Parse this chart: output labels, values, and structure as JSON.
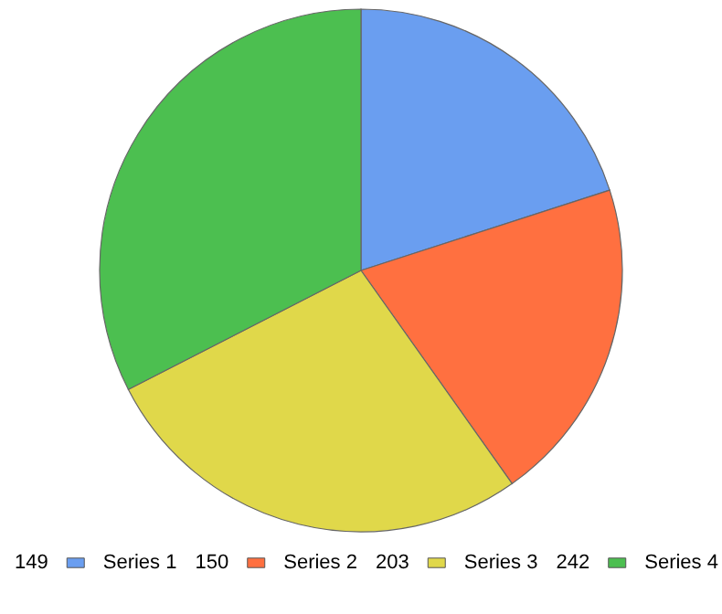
{
  "chart_data": {
    "type": "pie",
    "categories": [
      "Series 1",
      "Series 2",
      "Series 3",
      "Series 4"
    ],
    "values": [
      149,
      150,
      203,
      242
    ],
    "colors": [
      "#6a9ef0",
      "#ff7040",
      "#e0d84a",
      "#4cbf50"
    ],
    "data_labels": true,
    "legend": "bottom"
  }
}
